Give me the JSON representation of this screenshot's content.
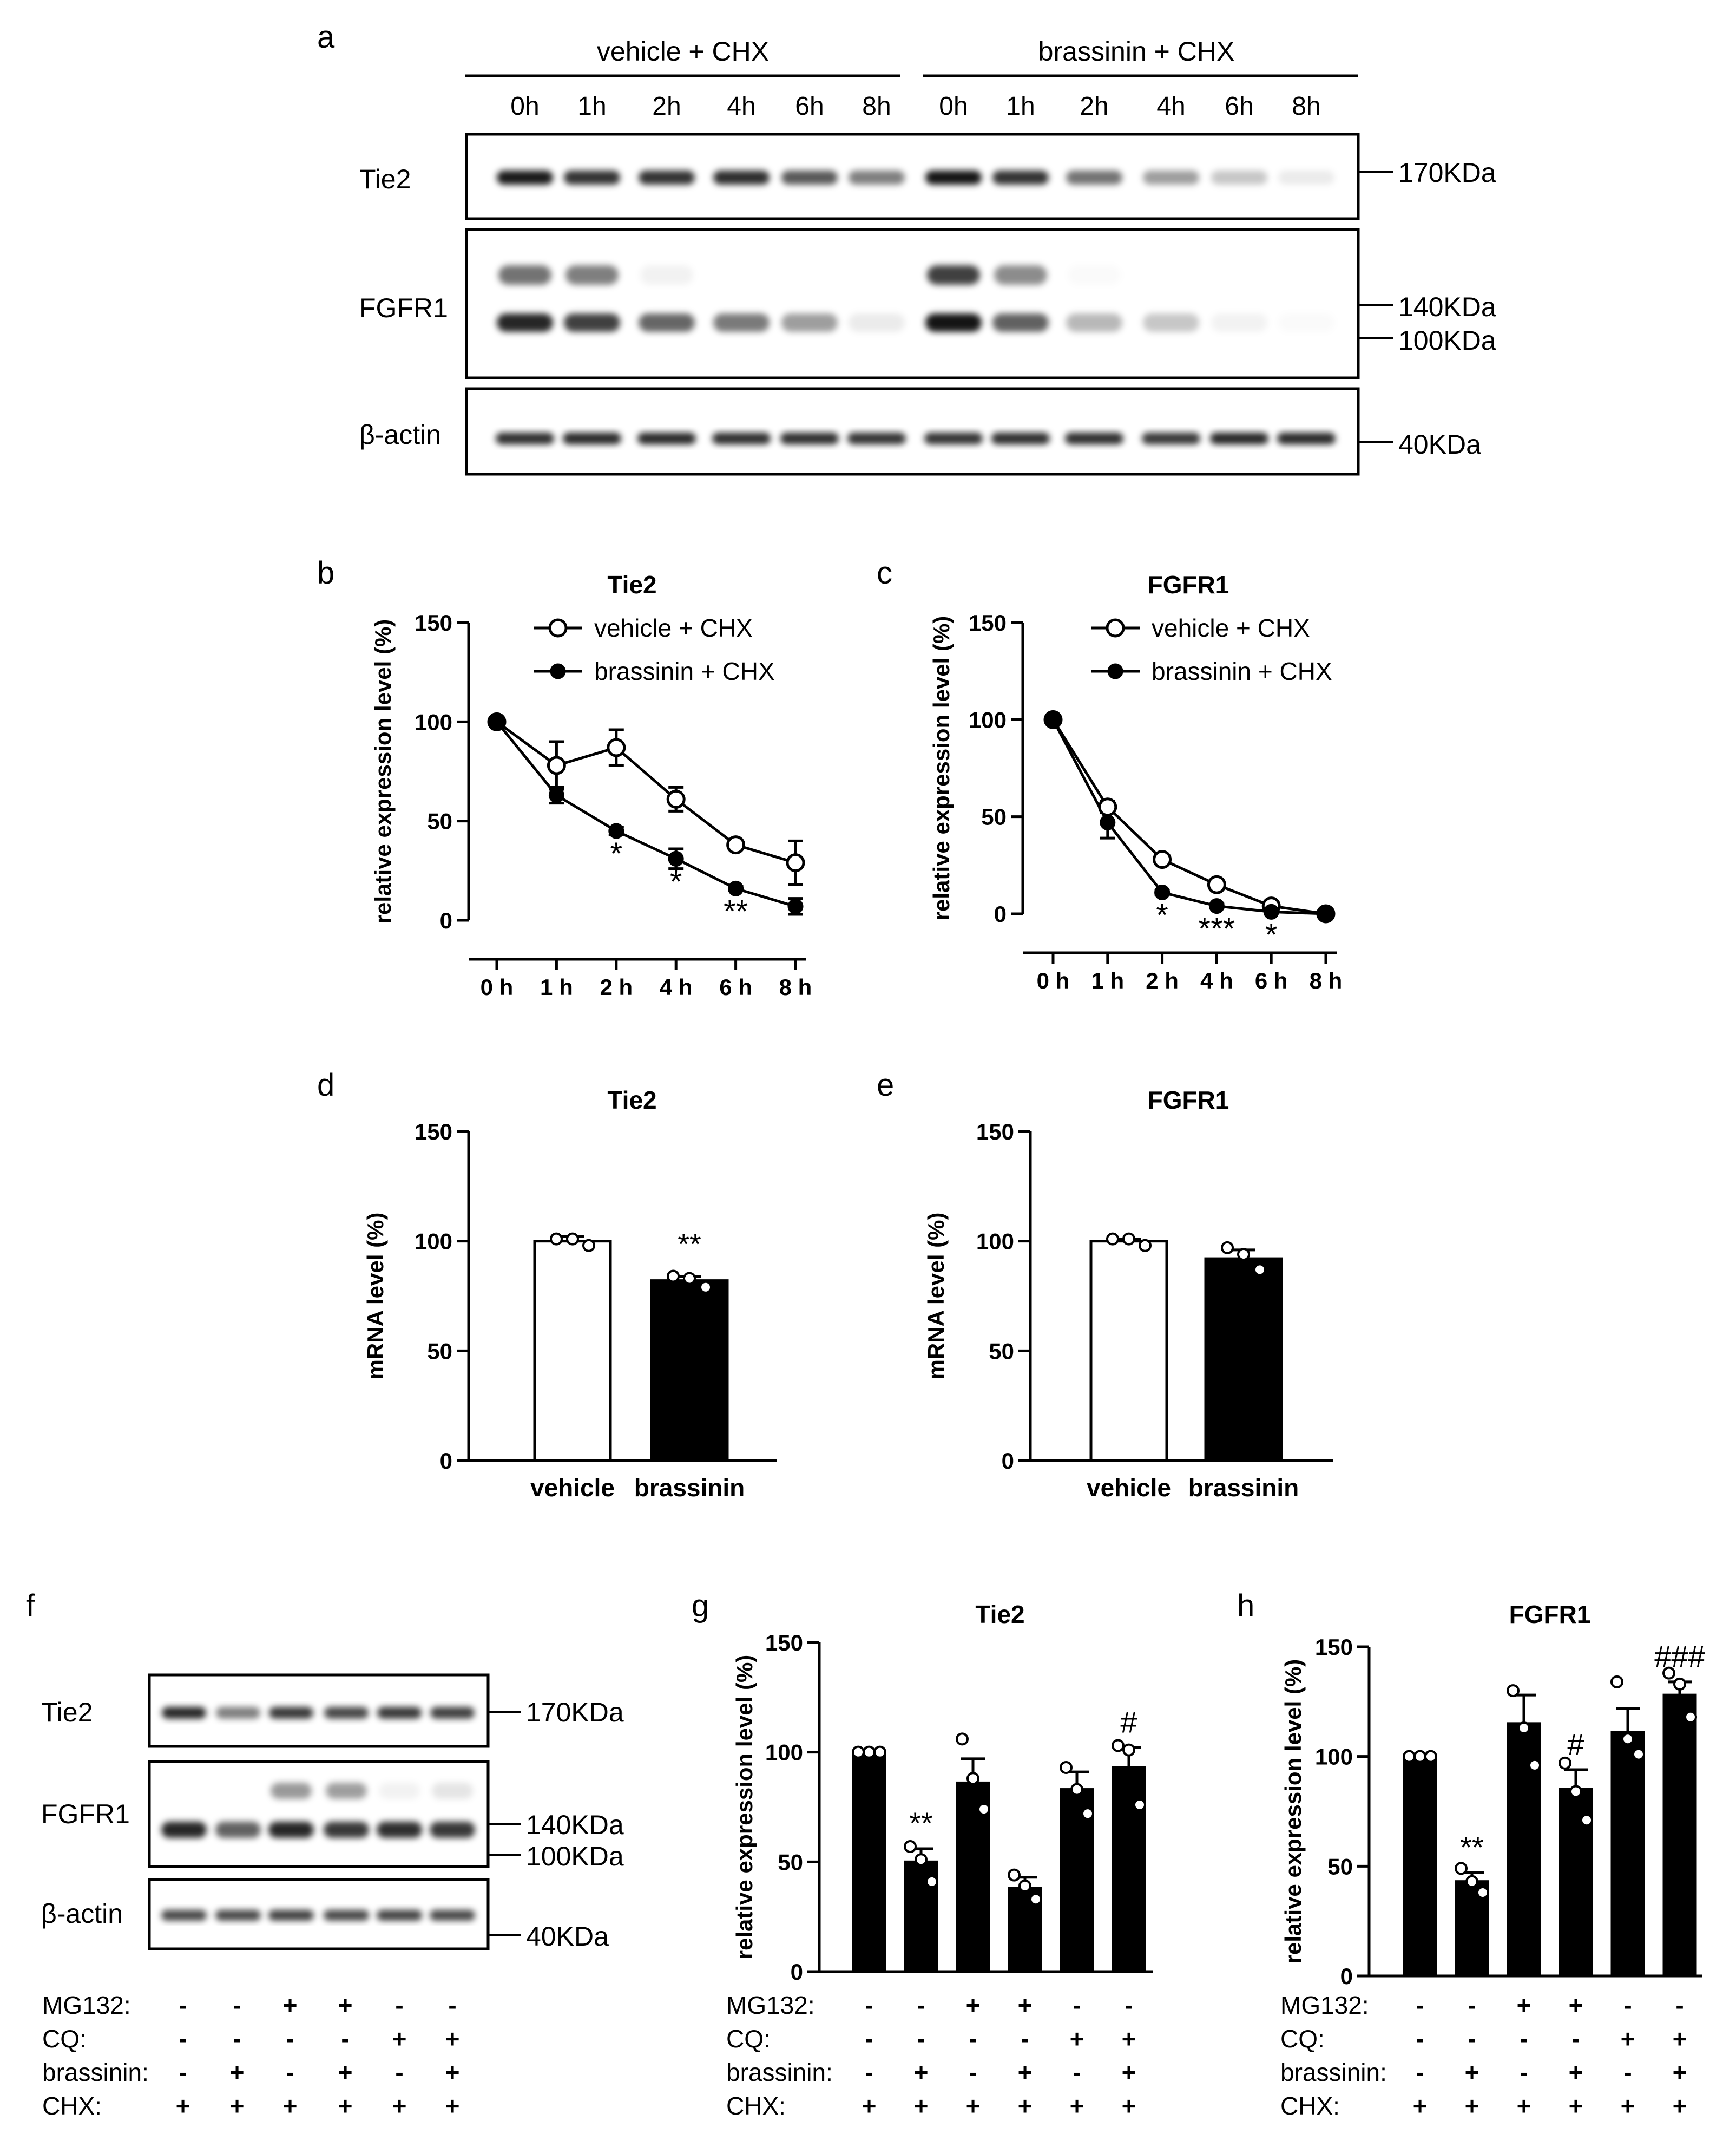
{
  "panel_labels": [
    "a",
    "b",
    "c",
    "d",
    "e",
    "f",
    "g",
    "h"
  ],
  "blot_a": {
    "groups": [
      "vehicle + CHX",
      "brassinin + CHX"
    ],
    "times": [
      "0h",
      "1h",
      "2h",
      "4h",
      "6h",
      "8h"
    ],
    "rows": [
      "Tie2",
      "FGFR1",
      "β-actin"
    ],
    "markers": {
      "tie2": [
        "170KDa"
      ],
      "fgfr1": [
        "140KDa",
        "100KDa"
      ],
      "actin": [
        "40KDa"
      ]
    }
  },
  "blot_f": {
    "rows": [
      "Tie2",
      "FGFR1",
      "β-actin"
    ],
    "markers": {
      "tie2": [
        "170KDa"
      ],
      "fgfr1": [
        "140KDa",
        "100KDa"
      ],
      "actin": [
        "40KDa"
      ]
    }
  },
  "treatments": {
    "labels": [
      "MG132:",
      "CQ:",
      "brassinin:",
      "CHX:"
    ],
    "rows": [
      [
        "-",
        "-",
        "+",
        "+",
        "-",
        "-"
      ],
      [
        "-",
        "-",
        "-",
        "-",
        "+",
        "+"
      ],
      [
        "-",
        "+",
        "-",
        "+",
        "-",
        "+"
      ],
      [
        "+",
        "+",
        "+",
        "+",
        "+",
        "+"
      ]
    ]
  },
  "chart_data": [
    {
      "panel": "b",
      "type": "line",
      "title": "Tie2",
      "ylabel": "relative expression level (%)",
      "x": [
        "0 h",
        "1 h",
        "2 h",
        "4 h",
        "6 h",
        "8 h"
      ],
      "ylim": [
        0,
        150
      ],
      "yticks": [
        "0",
        "50",
        "100",
        "150"
      ],
      "series": [
        {
          "name": "vehicle + CHX",
          "values": [
            100,
            78,
            87,
            61,
            38,
            29
          ],
          "errors": [
            0,
            12,
            9,
            6,
            2,
            11
          ],
          "fill": "#ffffff"
        },
        {
          "name": "brassinin + CHX",
          "values": [
            100,
            63,
            45,
            31,
            16,
            7
          ],
          "errors": [
            0,
            4,
            2,
            5,
            1,
            4
          ],
          "fill": "#000000"
        }
      ],
      "annotations": [
        {
          "x": 2,
          "text": "*"
        },
        {
          "x": 3,
          "text": "*"
        },
        {
          "x": 4,
          "text": "**"
        }
      ]
    },
    {
      "panel": "c",
      "type": "line",
      "title": "FGFR1",
      "ylabel": "relative expression level (%)",
      "x": [
        "0 h",
        "1 h",
        "2 h",
        "4 h",
        "6 h",
        "8 h"
      ],
      "ylim": [
        0,
        150
      ],
      "yticks": [
        "0",
        "50",
        "100",
        "150"
      ],
      "series": [
        {
          "name": "vehicle + CHX",
          "values": [
            100,
            55,
            28,
            15,
            4,
            0
          ],
          "errors": [
            0,
            3,
            2,
            1,
            1,
            0
          ],
          "fill": "#ffffff"
        },
        {
          "name": "brassinin + CHX",
          "values": [
            100,
            47,
            11,
            4,
            1,
            0
          ],
          "errors": [
            0,
            8,
            1,
            1,
            0,
            0
          ],
          "fill": "#000000"
        }
      ],
      "annotations": [
        {
          "x": 2,
          "text": "*"
        },
        {
          "x": 3,
          "text": "***"
        },
        {
          "x": 4,
          "text": "*"
        }
      ]
    },
    {
      "panel": "d",
      "type": "bar",
      "title": "Tie2",
      "ylabel": "mRNA level (%)",
      "categories": [
        "vehicle",
        "brassinin"
      ],
      "values": [
        100,
        82
      ],
      "errors": [
        2,
        2
      ],
      "fills": [
        "#ffffff",
        "#000000"
      ],
      "points": [
        [
          101,
          101,
          98
        ],
        [
          84,
          83,
          79
        ]
      ],
      "ylim": [
        0,
        150
      ],
      "yticks": [
        "0",
        "50",
        "100",
        "150"
      ],
      "annotations": [
        {
          "x": 1,
          "text": "**"
        }
      ]
    },
    {
      "panel": "e",
      "type": "bar",
      "title": "FGFR1",
      "ylabel": "mRNA level (%)",
      "categories": [
        "vehicle",
        "brassinin"
      ],
      "values": [
        100,
        92
      ],
      "errors": [
        1,
        4
      ],
      "fills": [
        "#ffffff",
        "#000000"
      ],
      "points": [
        [
          101,
          101,
          98
        ],
        [
          97,
          94,
          87
        ]
      ],
      "ylim": [
        0,
        150
      ],
      "yticks": [
        "0",
        "50",
        "100",
        "150"
      ],
      "annotations": []
    },
    {
      "panel": "g",
      "type": "bar",
      "title": "Tie2",
      "ylabel": "relative expression level (%)",
      "categories": [
        "1",
        "2",
        "3",
        "4",
        "5",
        "6"
      ],
      "values": [
        100,
        50,
        86,
        38,
        83,
        93
      ],
      "errors": [
        0,
        6,
        11,
        5,
        8,
        9
      ],
      "fills": [
        "#000000",
        "#000000",
        "#000000",
        "#000000",
        "#000000",
        "#000000"
      ],
      "points": [
        [
          100,
          100,
          100
        ],
        [
          57,
          51,
          41
        ],
        [
          106,
          88,
          74
        ],
        [
          44,
          39,
          33
        ],
        [
          93,
          83,
          72
        ],
        [
          103,
          101,
          76
        ]
      ],
      "ylim": [
        0,
        150
      ],
      "yticks": [
        "0",
        "50",
        "100",
        "150"
      ],
      "annotations": [
        {
          "x": 1,
          "text": "**"
        },
        {
          "x": 5,
          "text": "#"
        }
      ]
    },
    {
      "panel": "h",
      "type": "bar",
      "title": "FGFR1",
      "ylabel": "relative expression level (%)",
      "categories": [
        "1",
        "2",
        "3",
        "4",
        "5",
        "6"
      ],
      "values": [
        100,
        43,
        115,
        85,
        111,
        128
      ],
      "errors": [
        0,
        4,
        13,
        9,
        11,
        6
      ],
      "fills": [
        "#000000",
        "#000000",
        "#000000",
        "#000000",
        "#000000",
        "#000000"
      ],
      "points": [
        [
          100,
          100,
          100
        ],
        [
          49,
          43,
          38
        ],
        [
          130,
          113,
          96
        ],
        [
          97,
          84,
          71
        ],
        [
          134,
          108,
          101
        ],
        [
          138,
          133,
          118
        ]
      ],
      "ylim": [
        0,
        150
      ],
      "yticks": [
        "0",
        "50",
        "100",
        "150"
      ],
      "annotations": [
        {
          "x": 1,
          "text": "**"
        },
        {
          "x": 3,
          "text": "#"
        },
        {
          "x": 5,
          "text": "###"
        }
      ]
    }
  ]
}
